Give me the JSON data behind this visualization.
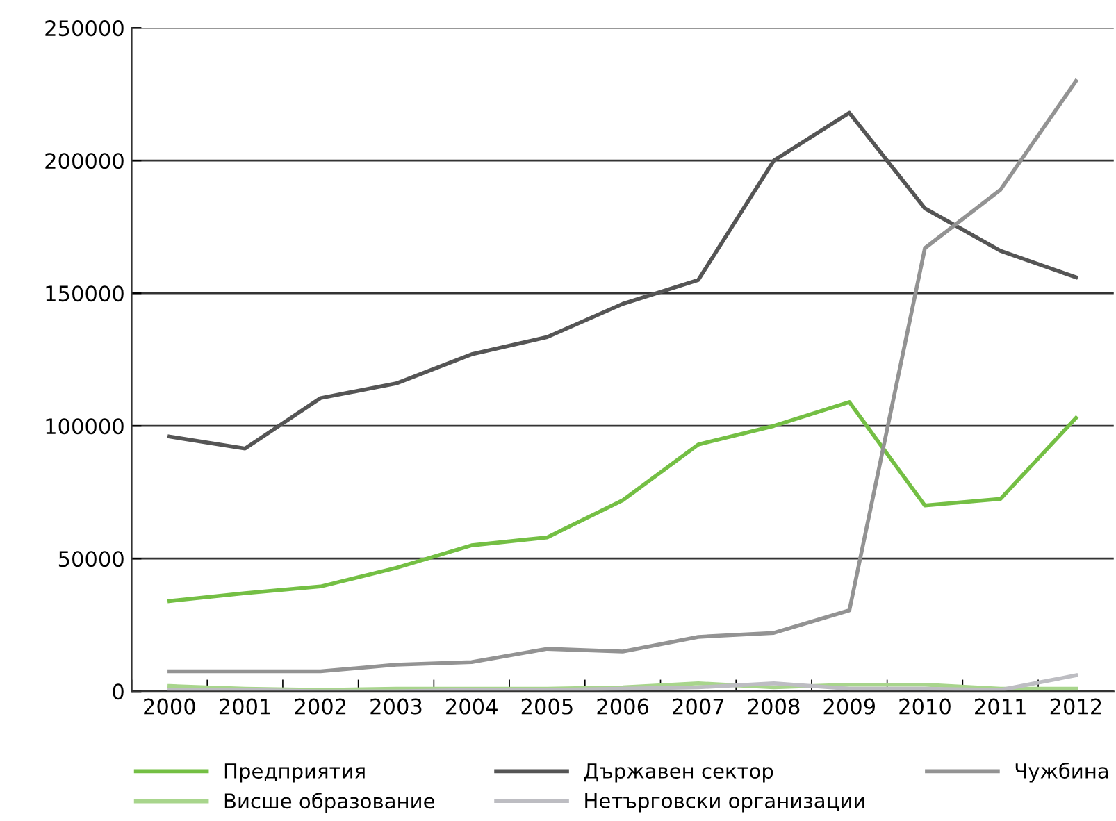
{
  "chart_data": {
    "type": "line",
    "categories": [
      "2000",
      "2001",
      "2002",
      "2003",
      "2004",
      "2005",
      "2006",
      "2007",
      "2008",
      "2009",
      "2010",
      "2011",
      "2012"
    ],
    "series": [
      {
        "name": "Предприятия",
        "color": "#74bf44",
        "values": [
          34000,
          37000,
          39500,
          46500,
          55000,
          58000,
          72000,
          93000,
          100000,
          109000,
          70000,
          72500,
          103000
        ]
      },
      {
        "name": "Държавен сектор",
        "color": "#555555",
        "values": [
          96000,
          91500,
          110500,
          116000,
          127000,
          133500,
          146000,
          155000,
          200000,
          218000,
          182000,
          166000,
          156000
        ]
      },
      {
        "name": "Чужбина",
        "color": "#939393",
        "values": [
          7500,
          7500,
          7500,
          10000,
          11000,
          16000,
          15000,
          20500,
          22000,
          30500,
          167000,
          189000,
          230000
        ]
      },
      {
        "name": "Висше образование",
        "color": "#a8d58c",
        "values": [
          2000,
          1000,
          500,
          1000,
          1000,
          1000,
          1500,
          3000,
          1500,
          2500,
          2500,
          1000,
          1000
        ]
      },
      {
        "name": "Нетърговски организации",
        "color": "#bdbdc2",
        "values": [
          500,
          500,
          0,
          0,
          500,
          500,
          1000,
          1500,
          3000,
          1000,
          1000,
          500,
          6000
        ]
      }
    ],
    "ylim": [
      0,
      250000
    ],
    "yticks": [
      0,
      50000,
      100000,
      150000,
      200000,
      250000
    ],
    "grid": "y",
    "legend": "bottom",
    "marker": "none",
    "line_style": "solid"
  }
}
